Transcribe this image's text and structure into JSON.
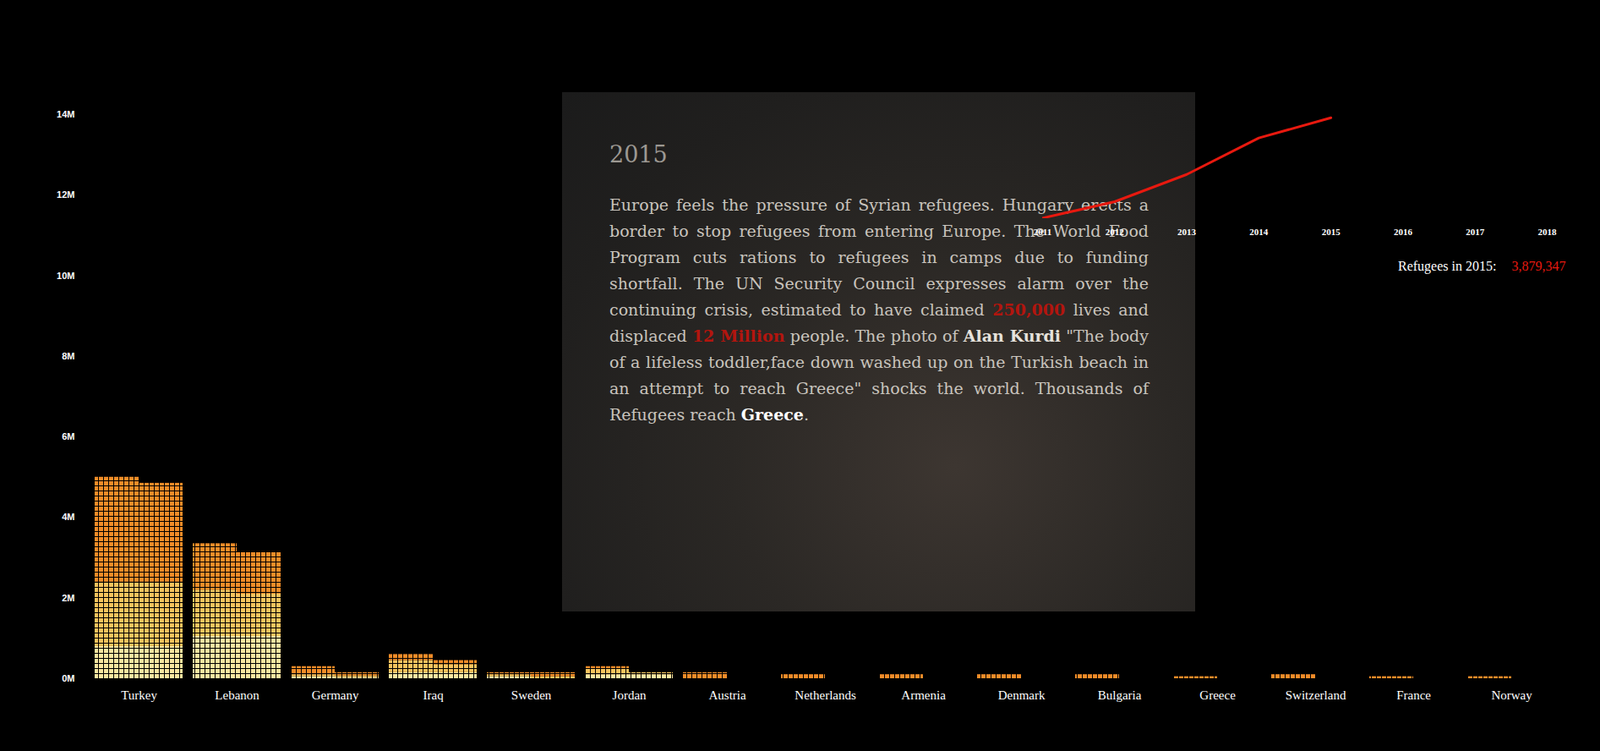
{
  "chart_data": [
    {
      "type": "bar",
      "stacked": true,
      "grid": false,
      "categories": [
        "Turkey",
        null,
        "Lebanon",
        null,
        "Germany",
        null,
        "Iraq",
        null,
        "Sweden",
        null,
        "Jordan",
        null,
        "Austria",
        null,
        "Netherlands",
        null,
        "Armenia",
        null,
        "Denmark",
        null,
        "Bulgaria",
        null,
        "Greece",
        null,
        "Switzerland",
        null,
        "France",
        null,
        "Norway",
        null
      ],
      "series": [
        {
          "color": "#fbe7a1",
          "values": [
            0.8,
            0.8,
            1.05,
            1.05,
            0.05,
            0.03,
            0.15,
            0.15,
            0.05,
            0,
            0.1,
            0.1,
            0,
            0,
            0,
            0,
            0,
            0,
            0,
            0,
            0,
            0,
            0,
            0,
            0,
            0,
            0,
            0,
            0,
            0
          ]
        },
        {
          "color": "#f7c45e",
          "values": [
            1.6,
            1.6,
            1.15,
            1.05,
            0.05,
            0.04,
            0.3,
            0.2,
            0.05,
            0.05,
            0.15,
            0.05,
            0,
            0,
            0,
            0,
            0,
            0,
            0,
            0,
            0,
            0,
            0,
            0,
            0,
            0,
            0,
            0,
            0,
            0
          ]
        },
        {
          "color": "#f28c28",
          "values": [
            2.6,
            2.45,
            1.15,
            1.05,
            0.2,
            0.08,
            0.15,
            0.1,
            0.05,
            0.1,
            0.05,
            0,
            0.15,
            0,
            0.1,
            0,
            0.1,
            0,
            0.1,
            0,
            0.1,
            0,
            0.05,
            0,
            0.1,
            0,
            0.05,
            0,
            0.05,
            0
          ]
        }
      ],
      "ylim": [
        0,
        14
      ],
      "yticks": [
        {
          "value": 0,
          "label": "0M"
        },
        {
          "value": 2,
          "label": "2M"
        },
        {
          "value": 4,
          "label": "4M"
        },
        {
          "value": 6,
          "label": "6M"
        },
        {
          "value": 8,
          "label": "8M"
        },
        {
          "value": 10,
          "label": "10M"
        },
        {
          "value": 12,
          "label": "12M"
        },
        {
          "value": 14,
          "label": "14M"
        }
      ]
    },
    {
      "type": "line",
      "tick_labels": "x",
      "x": [
        2011,
        2012,
        2013,
        2014,
        2015
      ],
      "series": [
        {
          "color": "#e8190f",
          "values": [
            20000,
            650000,
            1700000,
            3100000,
            3879347
          ]
        }
      ],
      "xlim": [
        2011,
        2018
      ],
      "xticks": [
        2011,
        2012,
        2013,
        2014,
        2015,
        2016,
        2017,
        2018
      ],
      "ylim": [
        0,
        4000000
      ],
      "annotation": {
        "label": "Refugees in 2015:",
        "value_text": "3,879,347"
      }
    }
  ],
  "story": {
    "year": "2015",
    "paragraph": [
      {
        "text": "Europe feels the pressure of Syrian refugees. Hungary erects a border to stop refugees from entering Europe. The World Food Program cuts rations to refugees in camps due to funding shortfall. The UN Security Council expresses alarm over the continuing crisis, estimated to have claimed "
      },
      {
        "text": "250,000",
        "style": "red"
      },
      {
        "text": " lives and displaced "
      },
      {
        "text": "12 Million",
        "style": "red"
      },
      {
        "text": " people. The photo of "
      },
      {
        "text": "Alan Kurdi",
        "style": "bold"
      },
      {
        "text": " \"The body of a lifeless toddler,face down washed up on the Turkish beach in an attempt to reach Greece\" shocks the world. Thousands of Refugees reach "
      },
      {
        "text": "Greece",
        "style": "white"
      },
      {
        "text": "."
      }
    ]
  }
}
